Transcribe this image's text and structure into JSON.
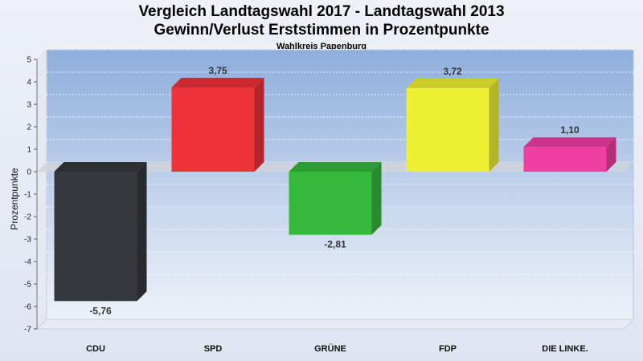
{
  "chart_data": {
    "type": "bar",
    "title": "Vergleich Landtagswahl 2017 - Landtagswahl 2013",
    "subtitle": "Gewinn/Verlust Erststimmen in Prozentpunkte",
    "subsubtitle": "Wahlkreis Papenburg",
    "ylabel": "Prozentpunkte",
    "xlabel": "",
    "ylim": [
      -7,
      5
    ],
    "yticks": [
      5,
      4,
      3,
      2,
      1,
      0,
      -1,
      -2,
      -3,
      -4,
      -5,
      -6,
      -7
    ],
    "grid": true,
    "categories": [
      "CDU",
      "SPD",
      "GRÜNE",
      "FDP",
      "DIE LINKE."
    ],
    "values": [
      -5.76,
      3.75,
      -2.81,
      3.72,
      1.1
    ],
    "value_labels": [
      "-5,76",
      "3,75",
      "-2,81",
      "3,72",
      "1,10"
    ],
    "colors": [
      "#35383d",
      "#ee3239",
      "#35b93b",
      "#eef033",
      "#ee3ea0"
    ]
  }
}
